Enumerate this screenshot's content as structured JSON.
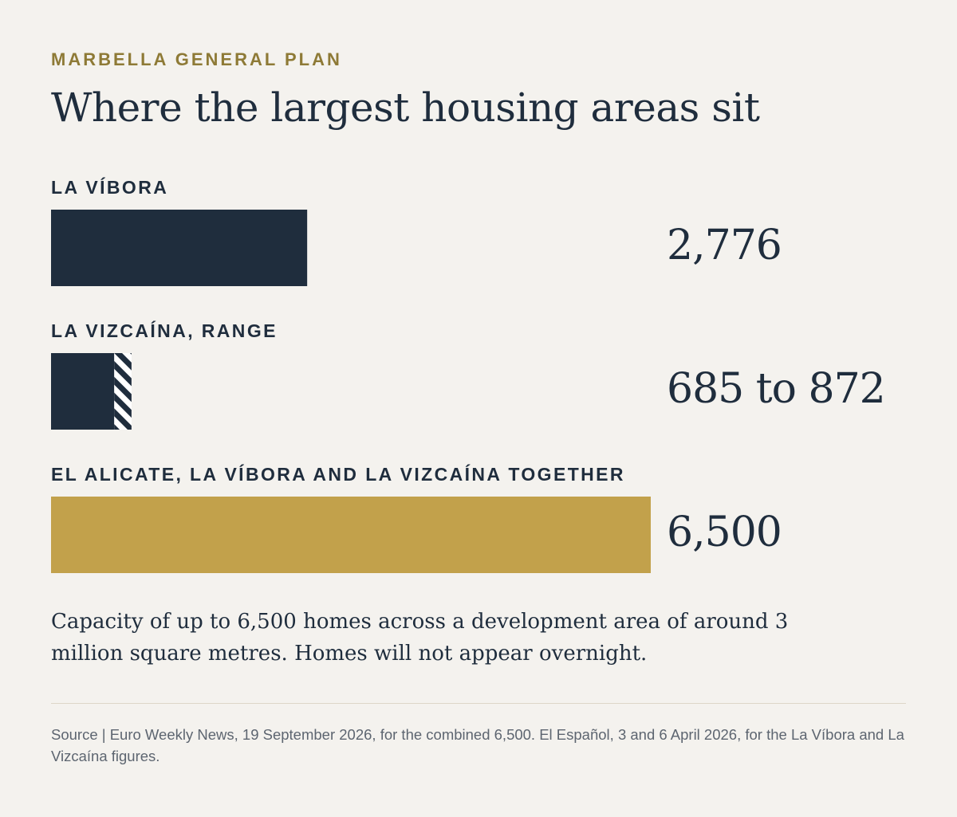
{
  "header": {
    "kicker": "MARBELLA GENERAL PLAN",
    "title": "Where the largest housing areas sit"
  },
  "colors": {
    "navy": "#1f2d3d",
    "gold": "#c2a14b",
    "background": "#f4f2ee"
  },
  "chart_data": {
    "type": "bar",
    "orientation": "horizontal",
    "x_max": 6500,
    "rows": [
      {
        "label": "LA VÍBORA",
        "value": 2776,
        "value_label": "2,776",
        "color": "#1f2d3d"
      },
      {
        "label": "LA VIZCAÍNA, RANGE",
        "range": [
          685,
          872
        ],
        "value_label": "685 to 872",
        "color": "#1f2d3d",
        "range_pattern": "hatched"
      },
      {
        "label": "EL ALICATE, LA VÍBORA AND LA VIZCAÍNA TOGETHER",
        "value": 6500,
        "value_label": "6,500",
        "color": "#c2a14b"
      }
    ]
  },
  "note": "Capacity of up to 6,500 homes across a development area of around 3 million square metres. Homes will not appear overnight.",
  "source": "Source | Euro Weekly News, 19 September 2026, for the combined 6,500. El Español, 3 and 6 April 2026, for the La Víbora and La Vizcaína figures."
}
